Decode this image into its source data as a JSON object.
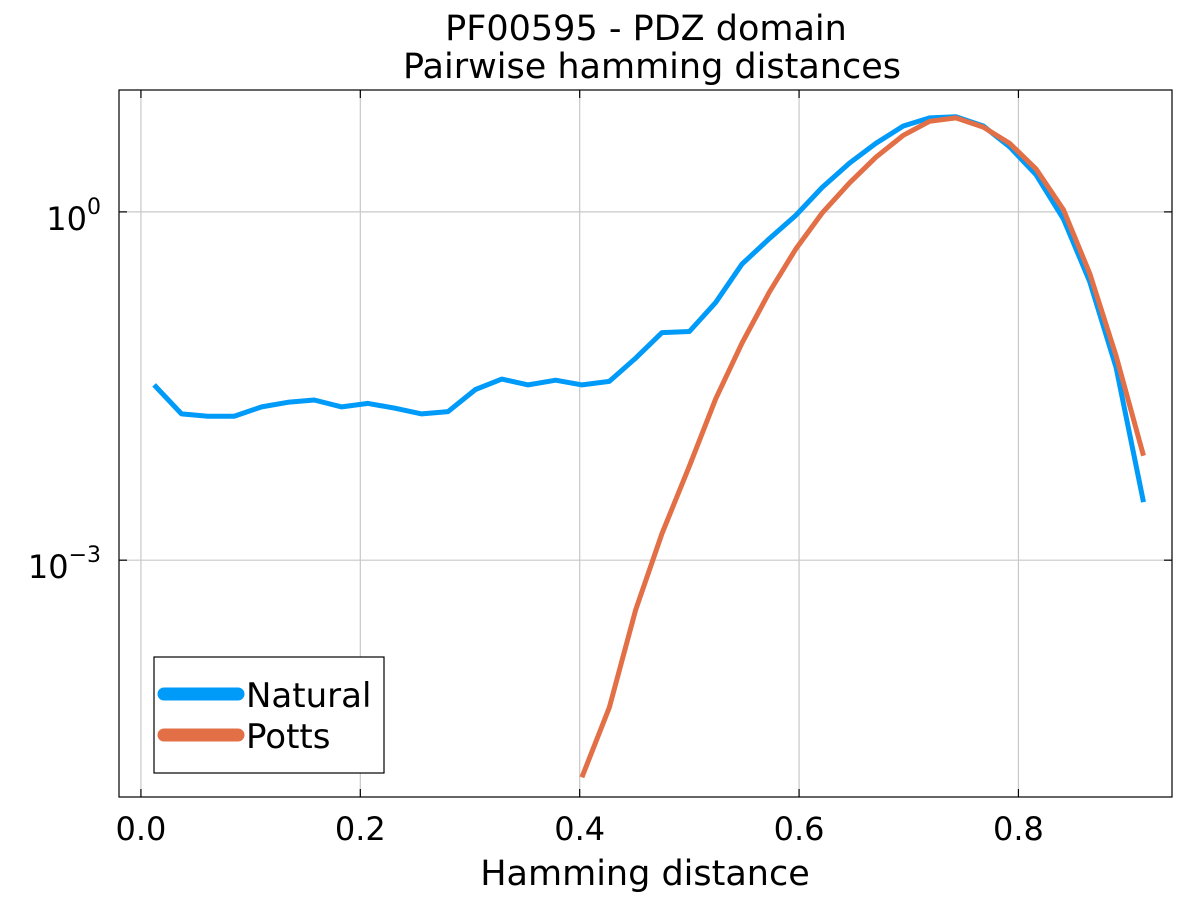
{
  "chart_data": {
    "type": "line",
    "title": "PF00595 - PDZ domain",
    "subtitle": "Pairwise hamming distances",
    "xlabel": "Hamming distance",
    "ylabel": "",
    "xlim": [
      -0.02,
      0.94
    ],
    "ylim_log10": [
      -5.04,
      1.05
    ],
    "yscale": "log10",
    "grid": true,
    "legend_position": "bottom-left",
    "x_ticks": [
      {
        "value": 0.0,
        "label": "0.0"
      },
      {
        "value": 0.2,
        "label": "0.2"
      },
      {
        "value": 0.4,
        "label": "0.4"
      },
      {
        "value": 0.6,
        "label": "0.6"
      },
      {
        "value": 0.8,
        "label": "0.8"
      }
    ],
    "y_ticks": [
      {
        "log10": 0,
        "base": "10",
        "exp": "0"
      },
      {
        "log10": -3,
        "base": "10",
        "exp": "−3"
      }
    ],
    "series": [
      {
        "name": "Natural",
        "color": "#009af9",
        "x": [
          0.012,
          0.037,
          0.061,
          0.085,
          0.11,
          0.134,
          0.158,
          0.183,
          0.207,
          0.231,
          0.256,
          0.28,
          0.305,
          0.329,
          0.353,
          0.378,
          0.402,
          0.427,
          0.451,
          0.475,
          0.5,
          0.524,
          0.548,
          0.573,
          0.597,
          0.621,
          0.646,
          0.67,
          0.695,
          0.719,
          0.743,
          0.768,
          0.792,
          0.816,
          0.841,
          0.865,
          0.889,
          0.914
        ],
        "log10_y": [
          -1.49,
          -1.74,
          -1.76,
          -1.76,
          -1.68,
          -1.64,
          -1.62,
          -1.68,
          -1.65,
          -1.69,
          -1.74,
          -1.72,
          -1.53,
          -1.44,
          -1.49,
          -1.45,
          -1.49,
          -1.46,
          -1.26,
          -1.04,
          -1.03,
          -0.78,
          -0.45,
          -0.23,
          -0.03,
          0.21,
          0.42,
          0.59,
          0.74,
          0.81,
          0.82,
          0.74,
          0.56,
          0.32,
          -0.06,
          -0.6,
          -1.34,
          -2.5
        ]
      },
      {
        "name": "Potts",
        "color": "#e26f46",
        "x": [
          0.402,
          0.427,
          0.451,
          0.475,
          0.5,
          0.524,
          0.548,
          0.573,
          0.597,
          0.621,
          0.646,
          0.67,
          0.695,
          0.719,
          0.743,
          0.768,
          0.792,
          0.816,
          0.841,
          0.865,
          0.889,
          0.914
        ],
        "log10_y": [
          -4.87,
          -4.27,
          -3.43,
          -2.77,
          -2.19,
          -1.61,
          -1.13,
          -0.69,
          -0.32,
          -0.01,
          0.25,
          0.47,
          0.66,
          0.78,
          0.81,
          0.73,
          0.59,
          0.37,
          0.02,
          -0.53,
          -1.24,
          -2.1
        ]
      }
    ]
  }
}
